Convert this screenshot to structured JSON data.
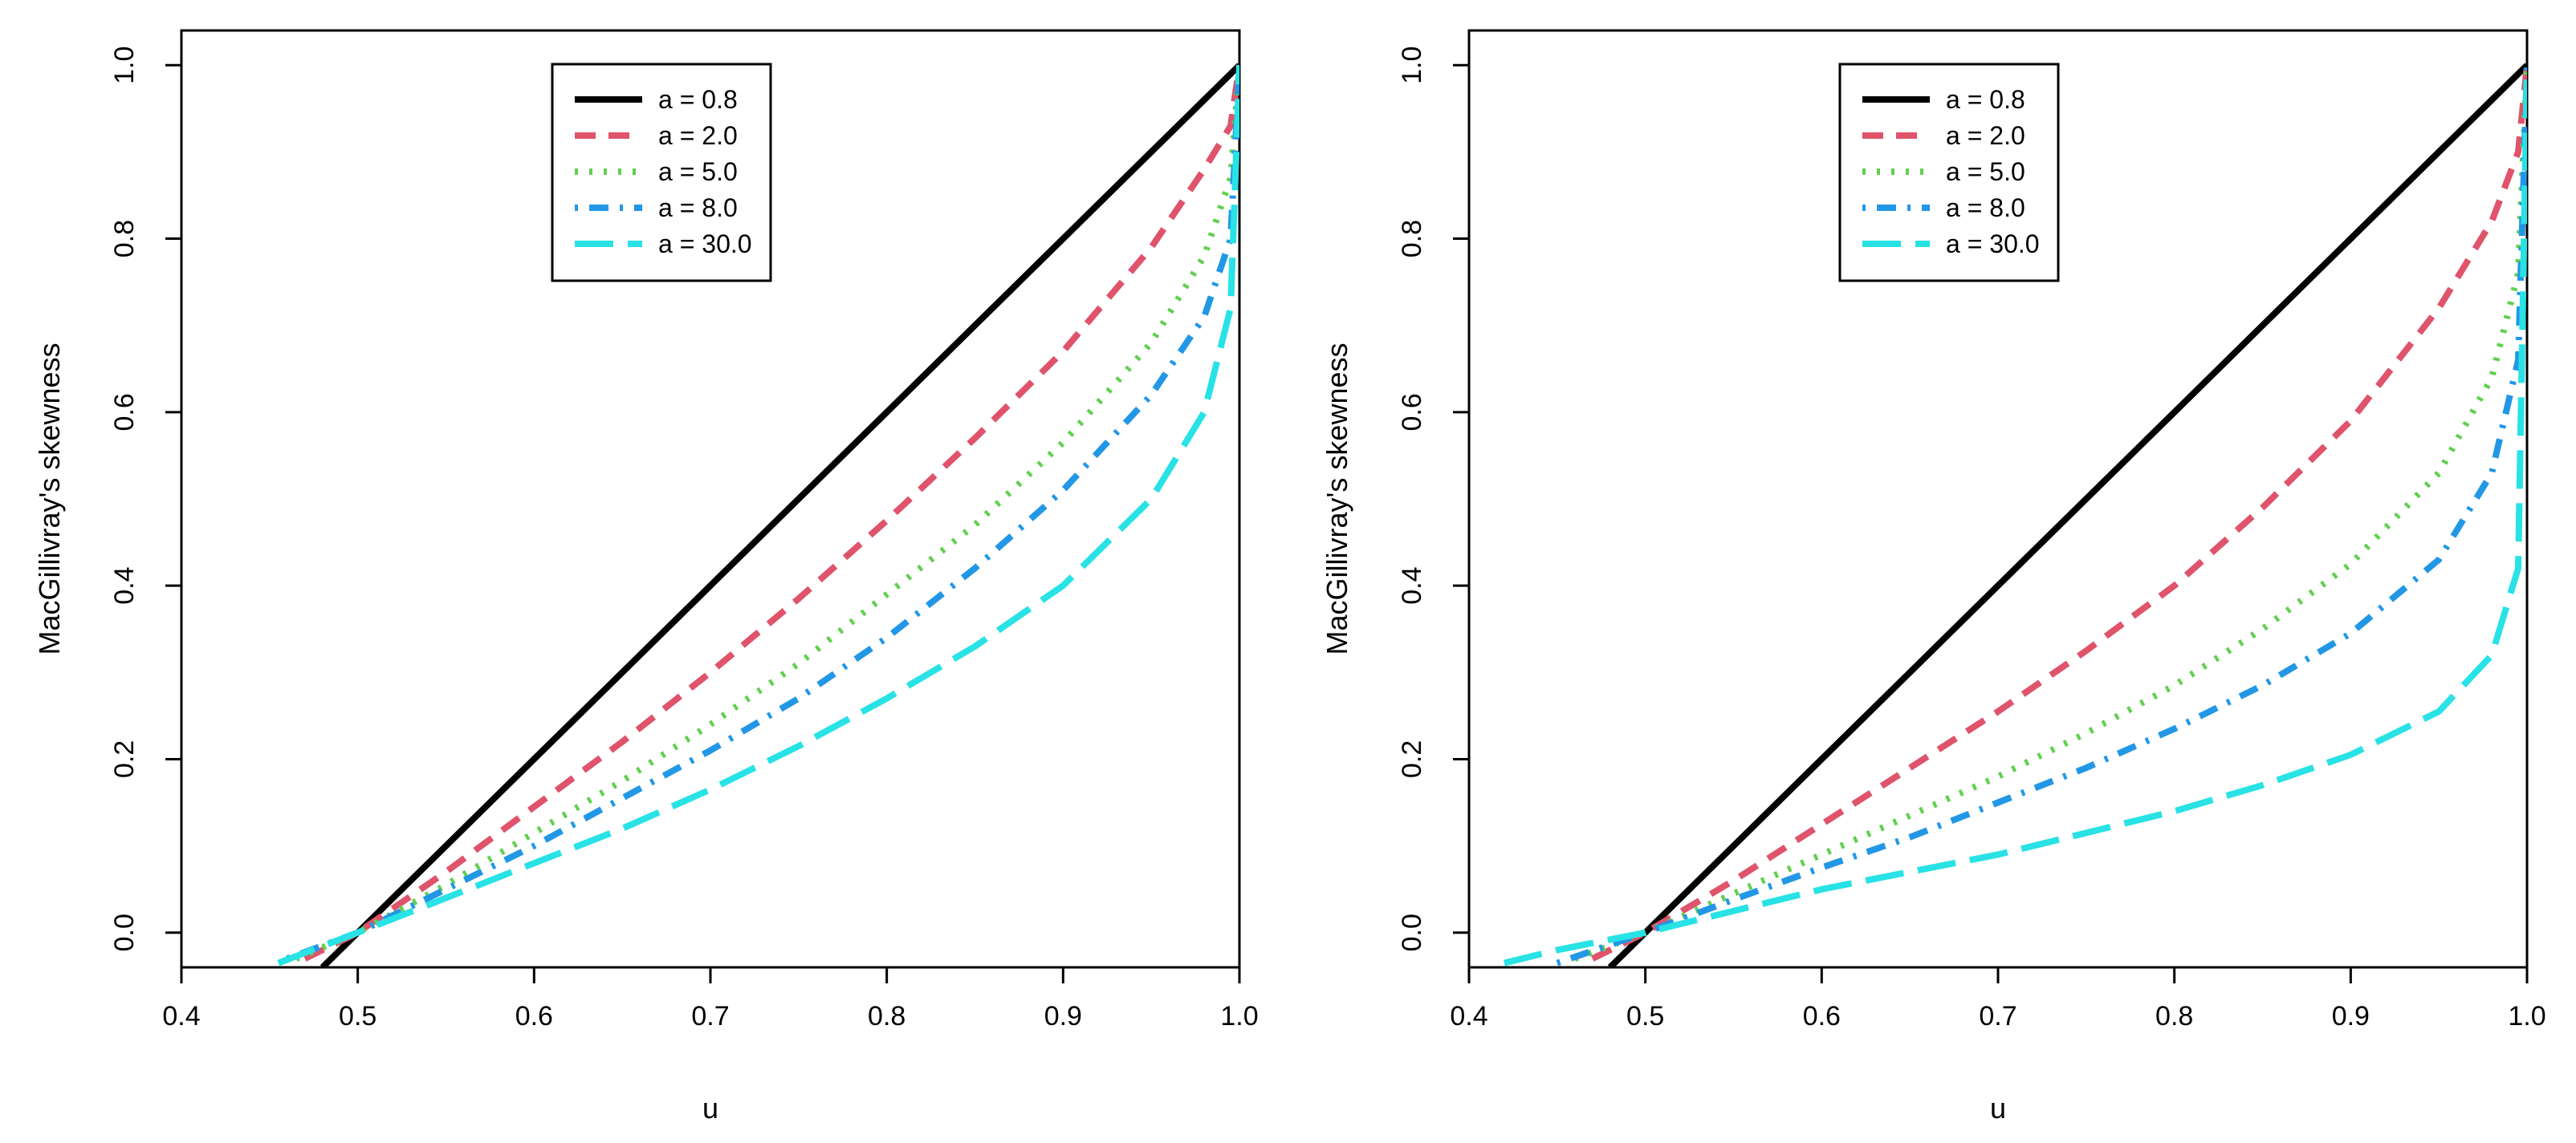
{
  "chart_data": [
    {
      "type": "line",
      "title": "",
      "xlabel": "u",
      "ylabel": "MacGillivray's skewness",
      "xlim": [
        0.4,
        1.0
      ],
      "ylim": [
        -0.04,
        1.04
      ],
      "xticks": [
        "0.4",
        "0.5",
        "0.6",
        "0.7",
        "0.8",
        "0.9",
        "1.0"
      ],
      "yticks": [
        "0.0",
        "0.2",
        "0.4",
        "0.6",
        "0.8",
        "1.0"
      ],
      "legend_position": "top-center",
      "series": [
        {
          "name": "a = 0.8",
          "color": "#000000",
          "style": "solid",
          "x": [
            0.48,
            0.5,
            0.55,
            0.6,
            0.65,
            0.7,
            0.75,
            0.8,
            0.85,
            0.9,
            0.95,
            0.98,
            1.0
          ],
          "y": [
            -0.04,
            0.0,
            0.1,
            0.2,
            0.3,
            0.4,
            0.5,
            0.6,
            0.7,
            0.8,
            0.9,
            0.96,
            1.0
          ]
        },
        {
          "name": "a = 2.0",
          "color": "#DF536B",
          "style": "dashed",
          "x": [
            0.47,
            0.5,
            0.55,
            0.6,
            0.65,
            0.7,
            0.75,
            0.8,
            0.85,
            0.9,
            0.95,
            0.98,
            0.995,
            1.0
          ],
          "y": [
            -0.03,
            0.0,
            0.07,
            0.145,
            0.22,
            0.3,
            0.385,
            0.475,
            0.57,
            0.67,
            0.79,
            0.88,
            0.93,
            1.0
          ]
        },
        {
          "name": "a = 5.0",
          "color": "#61D04F",
          "style": "dotted",
          "x": [
            0.465,
            0.5,
            0.55,
            0.6,
            0.65,
            0.7,
            0.75,
            0.8,
            0.85,
            0.9,
            0.95,
            0.98,
            0.995,
            1.0
          ],
          "y": [
            -0.03,
            0.0,
            0.055,
            0.115,
            0.175,
            0.24,
            0.31,
            0.39,
            0.47,
            0.565,
            0.68,
            0.78,
            0.87,
            1.0
          ]
        },
        {
          "name": "a = 8.0",
          "color": "#2297E6",
          "style": "dotdash",
          "x": [
            0.46,
            0.5,
            0.55,
            0.6,
            0.65,
            0.7,
            0.75,
            0.8,
            0.85,
            0.9,
            0.95,
            0.98,
            0.995,
            1.0
          ],
          "y": [
            -0.03,
            0.0,
            0.05,
            0.1,
            0.155,
            0.21,
            0.27,
            0.34,
            0.42,
            0.51,
            0.62,
            0.71,
            0.8,
            1.0
          ]
        },
        {
          "name": "a = 30.0",
          "color": "#28E2E5",
          "style": "longdash",
          "x": [
            0.455,
            0.5,
            0.55,
            0.6,
            0.65,
            0.7,
            0.75,
            0.8,
            0.85,
            0.9,
            0.95,
            0.98,
            0.995,
            1.0
          ],
          "y": [
            -0.035,
            0.0,
            0.04,
            0.08,
            0.12,
            0.165,
            0.215,
            0.27,
            0.33,
            0.4,
            0.5,
            0.6,
            0.72,
            1.0
          ]
        }
      ]
    },
    {
      "type": "line",
      "title": "",
      "xlabel": "u",
      "ylabel": "MacGillivray's skewness",
      "xlim": [
        0.4,
        1.0
      ],
      "ylim": [
        -0.04,
        1.04
      ],
      "xticks": [
        "0.4",
        "0.5",
        "0.6",
        "0.7",
        "0.8",
        "0.9",
        "1.0"
      ],
      "yticks": [
        "0.0",
        "0.2",
        "0.4",
        "0.6",
        "0.8",
        "1.0"
      ],
      "legend_position": "top-center",
      "series": [
        {
          "name": "a = 0.8",
          "color": "#000000",
          "style": "solid",
          "x": [
            0.48,
            0.5,
            0.55,
            0.6,
            0.65,
            0.7,
            0.75,
            0.8,
            0.85,
            0.9,
            0.95,
            0.98,
            1.0
          ],
          "y": [
            -0.04,
            0.0,
            0.1,
            0.2,
            0.3,
            0.4,
            0.5,
            0.6,
            0.7,
            0.8,
            0.9,
            0.96,
            1.0
          ]
        },
        {
          "name": "a = 2.0",
          "color": "#DF536B",
          "style": "dashed",
          "x": [
            0.47,
            0.5,
            0.55,
            0.6,
            0.65,
            0.7,
            0.75,
            0.8,
            0.85,
            0.9,
            0.95,
            0.98,
            0.995,
            1.0
          ],
          "y": [
            -0.03,
            0.0,
            0.06,
            0.125,
            0.19,
            0.255,
            0.325,
            0.4,
            0.49,
            0.59,
            0.72,
            0.82,
            0.9,
            1.0
          ]
        },
        {
          "name": "a = 5.0",
          "color": "#61D04F",
          "style": "dotted",
          "x": [
            0.46,
            0.5,
            0.55,
            0.6,
            0.65,
            0.7,
            0.75,
            0.8,
            0.85,
            0.9,
            0.95,
            0.98,
            0.995,
            1.0
          ],
          "y": [
            -0.03,
            0.0,
            0.045,
            0.09,
            0.135,
            0.18,
            0.23,
            0.285,
            0.35,
            0.425,
            0.53,
            0.64,
            0.76,
            1.0
          ]
        },
        {
          "name": "a = 8.0",
          "color": "#2297E6",
          "style": "dotdash",
          "x": [
            0.45,
            0.5,
            0.55,
            0.6,
            0.65,
            0.7,
            0.75,
            0.8,
            0.85,
            0.9,
            0.95,
            0.98,
            0.995,
            1.0
          ],
          "y": [
            -0.035,
            0.0,
            0.038,
            0.075,
            0.11,
            0.15,
            0.19,
            0.235,
            0.285,
            0.345,
            0.43,
            0.53,
            0.66,
            1.0
          ]
        },
        {
          "name": "a = 30.0",
          "color": "#28E2E5",
          "style": "longdash",
          "x": [
            0.42,
            0.45,
            0.5,
            0.55,
            0.6,
            0.65,
            0.7,
            0.75,
            0.8,
            0.85,
            0.9,
            0.95,
            0.98,
            0.995,
            1.0
          ],
          "y": [
            -0.035,
            -0.02,
            0.0,
            0.025,
            0.05,
            0.07,
            0.09,
            0.115,
            0.14,
            0.17,
            0.205,
            0.255,
            0.32,
            0.42,
            1.0
          ]
        }
      ]
    }
  ]
}
